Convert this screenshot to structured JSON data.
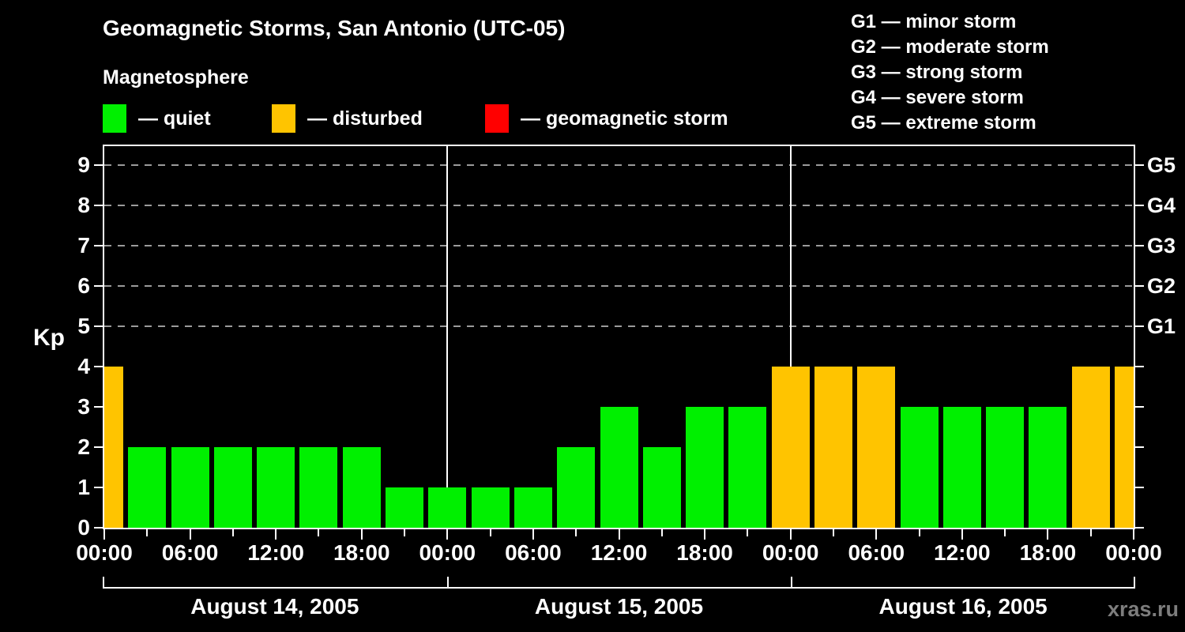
{
  "title": "Geomagnetic Storms, San Antonio (UTC-05)",
  "subtitle": "Magnetosphere",
  "watermark": "xras.ru",
  "colors": {
    "quiet": "#00F000",
    "disturbed": "#FFC400",
    "storm": "#FF0000",
    "background": "#000000",
    "axis": "#FFFFFF",
    "gridline": "#9B9B9B",
    "watermark_text": "#7D7D7D"
  },
  "legend": [
    {
      "key": "quiet",
      "label": "— quiet"
    },
    {
      "key": "disturbed",
      "label": "— disturbed"
    },
    {
      "key": "storm",
      "label": "— geomagnetic storm"
    }
  ],
  "storm_scale_legend": [
    "G1 — minor storm",
    "G2 — moderate storm",
    "G3 — strong storm",
    "G4 — severe storm",
    "G5 — extreme storm"
  ],
  "chart_data": {
    "type": "bar",
    "title": "Geomagnetic Storms, San Antonio (UTC-05)",
    "ylabel": "Kp",
    "ylim": [
      0,
      9.4
    ],
    "y_ticks": [
      0,
      1,
      2,
      3,
      4,
      5,
      6,
      7,
      8,
      9
    ],
    "grid": "horizontal dashed lines at Kp 5,6,7,8,9",
    "legend_position": "top",
    "bar_interval_hours": 3,
    "x_tick_labels": [
      "00:00",
      "06:00",
      "12:00",
      "18:00",
      "00:00",
      "06:00",
      "12:00",
      "18:00",
      "00:00",
      "06:00",
      "12:00",
      "18:00",
      "00:00"
    ],
    "days": [
      {
        "date": "August 14, 2005",
        "kp": [
          4,
          2,
          2,
          2,
          2,
          2,
          2,
          1
        ]
      },
      {
        "date": "August 15, 2005",
        "kp": [
          1,
          1,
          1,
          2,
          3,
          2,
          3,
          3
        ]
      },
      {
        "date": "August 16, 2005",
        "kp": [
          4,
          4,
          4,
          3,
          3,
          3,
          3,
          4
        ]
      }
    ],
    "trailing_bar_kp": 4,
    "thresholds": {
      "disturbed_min_kp": 4,
      "storm_min_kp": 5
    },
    "right_axis_labels": [
      {
        "label": "G1",
        "kp": 5
      },
      {
        "label": "G2",
        "kp": 6
      },
      {
        "label": "G3",
        "kp": 7
      },
      {
        "label": "G4",
        "kp": 8
      },
      {
        "label": "G5",
        "kp": 9
      }
    ]
  }
}
